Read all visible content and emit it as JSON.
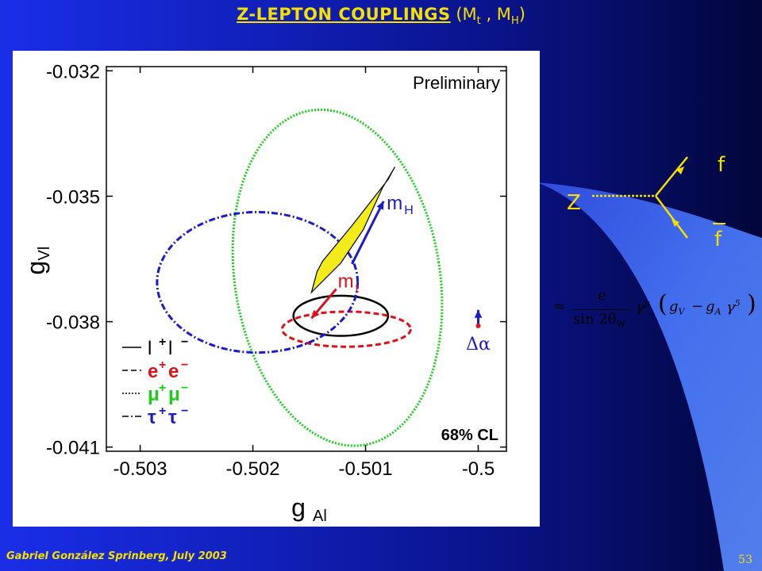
{
  "slide": {
    "title_main": "Z-LEPTON COUPLINGS",
    "title_sub_prefix": "(M",
    "title_sub_t": "t",
    "title_sub_mid": " , M",
    "title_sub_h": "H",
    "title_sub_suffix": ")",
    "footer": "Gabriel González Sprinberg, July 2003",
    "page_number": "53",
    "colors": {
      "title": "#f5e000",
      "beam": "#3f6bff"
    }
  },
  "feynman": {
    "boson": "Z",
    "fermion": "f",
    "antifermion": "f"
  },
  "formula": {
    "approx": "≈",
    "numerator": "e",
    "denominator": "sin 2θ",
    "denominator_sub": "W",
    "gamma_mu": "γ",
    "mu_sup": "μ",
    "paren_open": "(",
    "gV": "g",
    "gV_sub": "V",
    "minus": "−",
    "gA": "g",
    "gA_sub": "A",
    "gamma5": "γ",
    "five_sup": "5",
    "paren_close": ")"
  },
  "chart_data": {
    "type": "scatter",
    "title": "",
    "annotation_preliminary": "Preliminary",
    "annotation_cl": "68% CL",
    "xlabel": "g",
    "xlabel_sub": "Al",
    "ylabel": "g",
    "ylabel_sub": "Vl",
    "xlim": [
      -0.5033,
      -0.49975
    ],
    "ylim": [
      -0.0411,
      -0.0319
    ],
    "x_ticks": [
      -0.503,
      -0.502,
      -0.501,
      -0.5
    ],
    "x_tick_labels": [
      "-0.503",
      "-0.502",
      "-0.501",
      "-0.5"
    ],
    "y_ticks": [
      -0.032,
      -0.035,
      -0.038,
      -0.041
    ],
    "y_tick_labels": [
      "-0.032",
      "-0.035",
      "-0.038",
      "-0.041"
    ],
    "contours": [
      {
        "legend": "l+l−",
        "color": "#000000",
        "dash": "solid",
        "cx": -0.50122,
        "cy": -0.03786,
        "rx": 0.00042,
        "ry": 0.00048,
        "angle": 0
      },
      {
        "legend": "e+e−",
        "color": "#e0101a",
        "dash": "dashed",
        "cx": -0.50117,
        "cy": -0.03818,
        "rx": 0.00057,
        "ry": 0.00042,
        "angle": 0
      },
      {
        "legend": "μ+μ−",
        "color": "#17d017",
        "dash": "dotted",
        "cx": -0.50125,
        "cy": -0.03695,
        "rx": 0.00091,
        "ry": 0.00405,
        "angle": -9
      },
      {
        "legend": "τ+τ−",
        "color": "#1a1acf",
        "dash": "dashdot",
        "cx": -0.50196,
        "cy": -0.03706,
        "rx": 0.00089,
        "ry": 0.00168,
        "angle": 0
      }
    ],
    "legend_items": [
      {
        "label": "l",
        "sup1": "+",
        "mid": "l",
        "sup2": "−",
        "color": "#000000"
      },
      {
        "label": "e",
        "sup1": "+",
        "mid": "e",
        "sup2": "−",
        "color": "#e0101a"
      },
      {
        "label": "μ",
        "sup1": "+",
        "mid": "μ",
        "sup2": "−",
        "color": "#17d017"
      },
      {
        "label": "τ",
        "sup1": "+",
        "mid": "τ",
        "sup2": "−",
        "color": "#1a1acf"
      }
    ],
    "sm_band": {
      "color": "#f4ec1a",
      "points": [
        [
          -0.50074,
          -0.0343
        ],
        [
          -0.5008,
          -0.0346
        ],
        [
          -0.50112,
          -0.0357
        ],
        [
          -0.50138,
          -0.03655
        ],
        [
          -0.50143,
          -0.0368
        ],
        [
          -0.50148,
          -0.0373
        ],
        [
          -0.50122,
          -0.0366
        ],
        [
          -0.50102,
          -0.0358
        ],
        [
          -0.50085,
          -0.0348
        ]
      ]
    },
    "arrows": [
      {
        "label": "m",
        "label_sub": "H",
        "color": "#1a1acf",
        "from": [
          -0.50112,
          -0.03662
        ],
        "to": [
          -0.50084,
          -0.03512
        ]
      },
      {
        "label": "m",
        "label_sub": "t",
        "color": "#e0101a",
        "from": [
          -0.50126,
          -0.03722
        ],
        "to": [
          -0.50148,
          -0.03792
        ]
      },
      {
        "label": "Δα",
        "color": "#1a1acf",
        "from": [
          -0.5,
          -0.0381
        ],
        "to": [
          -0.5,
          -0.03772
        ]
      }
    ]
  }
}
